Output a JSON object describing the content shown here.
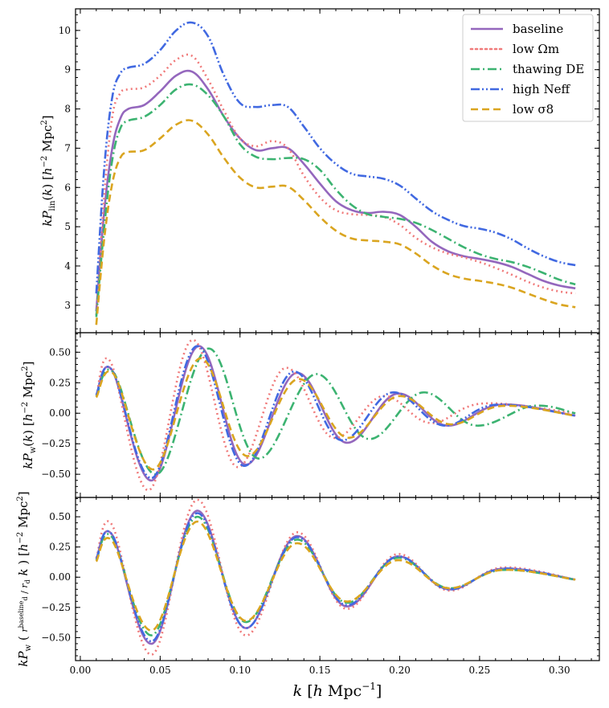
{
  "chart_data": {
    "type": "line",
    "xlabel": "k [h Mpc^-1]",
    "xlim": [
      -0.003,
      0.325
    ],
    "x_ticks": [
      0.0,
      0.05,
      0.1,
      0.15,
      0.2,
      0.25,
      0.3
    ],
    "x_tick_labels": [
      "0.00",
      "0.05",
      "0.10",
      "0.15",
      "0.20",
      "0.25",
      "0.30"
    ],
    "legend": {
      "placement": "top-right",
      "entries": [
        {
          "label": "baseline",
          "color": "#9467bd",
          "style": "solid"
        },
        {
          "label": "low Ωm",
          "color": "#f07a7a",
          "style": "dotted"
        },
        {
          "label": "thawing DE",
          "color": "#3cb371",
          "style": "dashdot"
        },
        {
          "label": "high Neff",
          "color": "#4169e1",
          "style": "dashdotdot"
        },
        {
          "label": "low σ8",
          "color": "#daa520",
          "style": "dashed"
        }
      ]
    },
    "panels": [
      {
        "name": "linear",
        "ylabel": "k Plin(k) [h^-2 Mpc^2]",
        "ylim": [
          2.3,
          10.55
        ],
        "y_ticks": [
          3,
          4,
          5,
          6,
          7,
          8,
          9,
          10
        ],
        "series": [
          {
            "name": "baseline",
            "x": [
              0.01,
              0.015,
              0.02,
              0.025,
              0.03,
              0.04,
              0.05,
              0.06,
              0.07,
              0.08,
              0.09,
              0.1,
              0.11,
              0.12,
              0.13,
              0.14,
              0.15,
              0.16,
              0.17,
              0.18,
              0.19,
              0.2,
              0.21,
              0.22,
              0.23,
              0.24,
              0.25,
              0.26,
              0.27,
              0.28,
              0.29,
              0.3,
              0.31
            ],
            "y": [
              2.85,
              5.4,
              7.0,
              7.75,
              8.0,
              8.1,
              8.45,
              8.85,
              8.95,
              8.5,
              7.8,
              7.25,
              6.95,
              7.0,
              7.0,
              6.6,
              6.1,
              5.65,
              5.42,
              5.35,
              5.38,
              5.3,
              5.0,
              4.62,
              4.38,
              4.25,
              4.18,
              4.1,
              3.98,
              3.8,
              3.62,
              3.5,
              3.43
            ]
          },
          {
            "name": "low Ωm",
            "x": [
              0.01,
              0.015,
              0.02,
              0.025,
              0.03,
              0.04,
              0.05,
              0.06,
              0.07,
              0.08,
              0.09,
              0.1,
              0.11,
              0.12,
              0.13,
              0.14,
              0.15,
              0.16,
              0.17,
              0.18,
              0.19,
              0.2,
              0.21,
              0.22,
              0.23,
              0.24,
              0.25,
              0.26,
              0.27,
              0.28,
              0.29,
              0.3,
              0.31
            ],
            "y": [
              2.75,
              5.8,
              7.8,
              8.4,
              8.5,
              8.55,
              8.85,
              9.25,
              9.35,
              8.75,
              7.95,
              7.25,
              7.05,
              7.18,
              7.0,
              6.3,
              5.75,
              5.42,
              5.32,
              5.3,
              5.25,
              5.05,
              4.72,
              4.48,
              4.32,
              4.22,
              4.1,
              3.95,
              3.78,
              3.6,
              3.45,
              3.35,
              3.3
            ]
          },
          {
            "name": "thawing DE",
            "x": [
              0.01,
              0.015,
              0.02,
              0.025,
              0.03,
              0.04,
              0.05,
              0.06,
              0.07,
              0.08,
              0.09,
              0.1,
              0.11,
              0.12,
              0.13,
              0.14,
              0.15,
              0.16,
              0.17,
              0.18,
              0.19,
              0.2,
              0.21,
              0.22,
              0.23,
              0.24,
              0.25,
              0.26,
              0.27,
              0.28,
              0.29,
              0.3,
              0.31
            ],
            "y": [
              2.7,
              5.0,
              6.7,
              7.5,
              7.7,
              7.8,
              8.1,
              8.5,
              8.62,
              8.35,
              7.8,
              7.1,
              6.78,
              6.72,
              6.75,
              6.72,
              6.45,
              5.95,
              5.55,
              5.32,
              5.25,
              5.2,
              5.1,
              4.92,
              4.7,
              4.48,
              4.3,
              4.18,
              4.1,
              3.98,
              3.82,
              3.65,
              3.53
            ]
          },
          {
            "name": "high Neff",
            "x": [
              0.01,
              0.015,
              0.02,
              0.025,
              0.03,
              0.04,
              0.05,
              0.06,
              0.07,
              0.08,
              0.09,
              0.1,
              0.11,
              0.12,
              0.13,
              0.14,
              0.15,
              0.16,
              0.17,
              0.18,
              0.19,
              0.2,
              0.21,
              0.22,
              0.23,
              0.24,
              0.25,
              0.26,
              0.27,
              0.28,
              0.29,
              0.3,
              0.31
            ],
            "y": [
              3.3,
              6.5,
              8.3,
              8.9,
              9.05,
              9.15,
              9.5,
              10.0,
              10.2,
              9.85,
              8.85,
              8.15,
              8.05,
              8.1,
              8.05,
              7.55,
              7.0,
              6.6,
              6.35,
              6.28,
              6.22,
              6.05,
              5.72,
              5.4,
              5.18,
              5.02,
              4.95,
              4.85,
              4.68,
              4.45,
              4.25,
              4.1,
              4.02
            ]
          },
          {
            "name": "low σ8",
            "x": [
              0.01,
              0.015,
              0.02,
              0.025,
              0.03,
              0.04,
              0.05,
              0.06,
              0.07,
              0.08,
              0.09,
              0.1,
              0.11,
              0.12,
              0.13,
              0.14,
              0.15,
              0.16,
              0.17,
              0.18,
              0.19,
              0.2,
              0.21,
              0.22,
              0.23,
              0.24,
              0.25,
              0.26,
              0.27,
              0.28,
              0.29,
              0.3,
              0.31
            ],
            "y": [
              2.5,
              4.7,
              6.1,
              6.75,
              6.9,
              6.95,
              7.25,
              7.6,
              7.7,
              7.35,
              6.75,
              6.25,
              6.0,
              6.02,
              6.02,
              5.68,
              5.25,
              4.9,
              4.7,
              4.65,
              4.62,
              4.55,
              4.32,
              4.02,
              3.8,
              3.68,
              3.62,
              3.55,
              3.45,
              3.3,
              3.15,
              3.02,
              2.95
            ]
          }
        ]
      },
      {
        "name": "wiggle",
        "ylabel": "k Pw(k) [h^-2 Mpc^2]",
        "ylim": [
          -0.69,
          0.66
        ],
        "y_ticks": [
          -0.5,
          -0.25,
          0.0,
          0.25,
          0.5
        ],
        "y_tick_labels": [
          "−0.50",
          "−0.25",
          "0.00",
          "0.25",
          "0.50"
        ],
        "series": [
          {
            "name": "baseline",
            "x": [
              0.01,
              0.02,
              0.045,
              0.074,
              0.103,
              0.135,
              0.166,
              0.198,
              0.229,
              0.263,
              0.31
            ],
            "y": [
              0.15,
              0.35,
              -0.55,
              0.55,
              -0.42,
              0.33,
              -0.24,
              0.16,
              -0.1,
              0.07,
              -0.02
            ]
          },
          {
            "name": "low Ωm",
            "x": [
              0.01,
              0.019,
              0.043,
              0.07,
              0.098,
              0.128,
              0.158,
              0.189,
              0.219,
              0.252,
              0.31
            ],
            "y": [
              0.14,
              0.42,
              -0.63,
              0.6,
              -0.44,
              0.37,
              -0.2,
              0.14,
              -0.08,
              0.08,
              0.0
            ]
          },
          {
            "name": "thawing DE",
            "x": [
              0.01,
              0.021,
              0.048,
              0.08,
              0.111,
              0.147,
              0.18,
              0.214,
              0.247,
              0.283,
              0.31
            ],
            "y": [
              0.14,
              0.33,
              -0.5,
              0.53,
              -0.37,
              0.32,
              -0.21,
              0.17,
              -0.1,
              0.06,
              0.0
            ]
          },
          {
            "name": "high Neff",
            "x": [
              0.01,
              0.02,
              0.045,
              0.073,
              0.102,
              0.133,
              0.163,
              0.195,
              0.227,
              0.26,
              0.31
            ],
            "y": [
              0.15,
              0.35,
              -0.53,
              0.55,
              -0.43,
              0.34,
              -0.22,
              0.17,
              -0.1,
              0.07,
              -0.02
            ]
          },
          {
            "name": "low σ8",
            "x": [
              0.01,
              0.021,
              0.046,
              0.075,
              0.104,
              0.136,
              0.167,
              0.199,
              0.231,
              0.264,
              0.31
            ],
            "y": [
              0.13,
              0.32,
              -0.46,
              0.45,
              -0.35,
              0.28,
              -0.2,
              0.14,
              -0.09,
              0.06,
              -0.02
            ]
          }
        ]
      },
      {
        "name": "rescaled",
        "ylabel": "k Pw((r_d^baseline / r_d) k) [h^-2 Mpc^2]",
        "ylim": [
          -0.69,
          0.66
        ],
        "y_ticks": [
          -0.5,
          -0.25,
          0.0,
          0.25,
          0.5
        ],
        "y_tick_labels": [
          "−0.50",
          "−0.25",
          "0.00",
          "0.25",
          "0.50"
        ],
        "series": [
          {
            "name": "baseline",
            "x": [
              0.01,
              0.02,
              0.045,
              0.073,
              0.103,
              0.135,
              0.166,
              0.198,
              0.23,
              0.264,
              0.31
            ],
            "y": [
              0.15,
              0.35,
              -0.55,
              0.55,
              -0.42,
              0.34,
              -0.24,
              0.17,
              -0.1,
              0.07,
              -0.02
            ]
          },
          {
            "name": "low Ωm",
            "x": [
              0.01,
              0.02,
              0.045,
              0.073,
              0.103,
              0.135,
              0.166,
              0.198,
              0.23,
              0.264,
              0.31
            ],
            "y": [
              0.16,
              0.43,
              -0.64,
              0.64,
              -0.48,
              0.37,
              -0.26,
              0.19,
              -0.11,
              0.08,
              -0.02
            ]
          },
          {
            "name": "thawing DE",
            "x": [
              0.01,
              0.02,
              0.045,
              0.073,
              0.103,
              0.135,
              0.166,
              0.198,
              0.23,
              0.264,
              0.31
            ],
            "y": [
              0.14,
              0.33,
              -0.48,
              0.5,
              -0.37,
              0.31,
              -0.21,
              0.16,
              -0.09,
              0.06,
              -0.02
            ]
          },
          {
            "name": "high Neff",
            "x": [
              0.01,
              0.02,
              0.045,
              0.073,
              0.103,
              0.135,
              0.166,
              0.198,
              0.23,
              0.264,
              0.31
            ],
            "y": [
              0.15,
              0.35,
              -0.53,
              0.53,
              -0.42,
              0.33,
              -0.23,
              0.17,
              -0.1,
              0.07,
              -0.02
            ]
          },
          {
            "name": "low σ8",
            "x": [
              0.01,
              0.02,
              0.045,
              0.073,
              0.103,
              0.135,
              0.166,
              0.198,
              0.23,
              0.264,
              0.31
            ],
            "y": [
              0.13,
              0.3,
              -0.44,
              0.46,
              -0.36,
              0.28,
              -0.2,
              0.14,
              -0.09,
              0.06,
              -0.02
            ]
          }
        ]
      }
    ]
  }
}
